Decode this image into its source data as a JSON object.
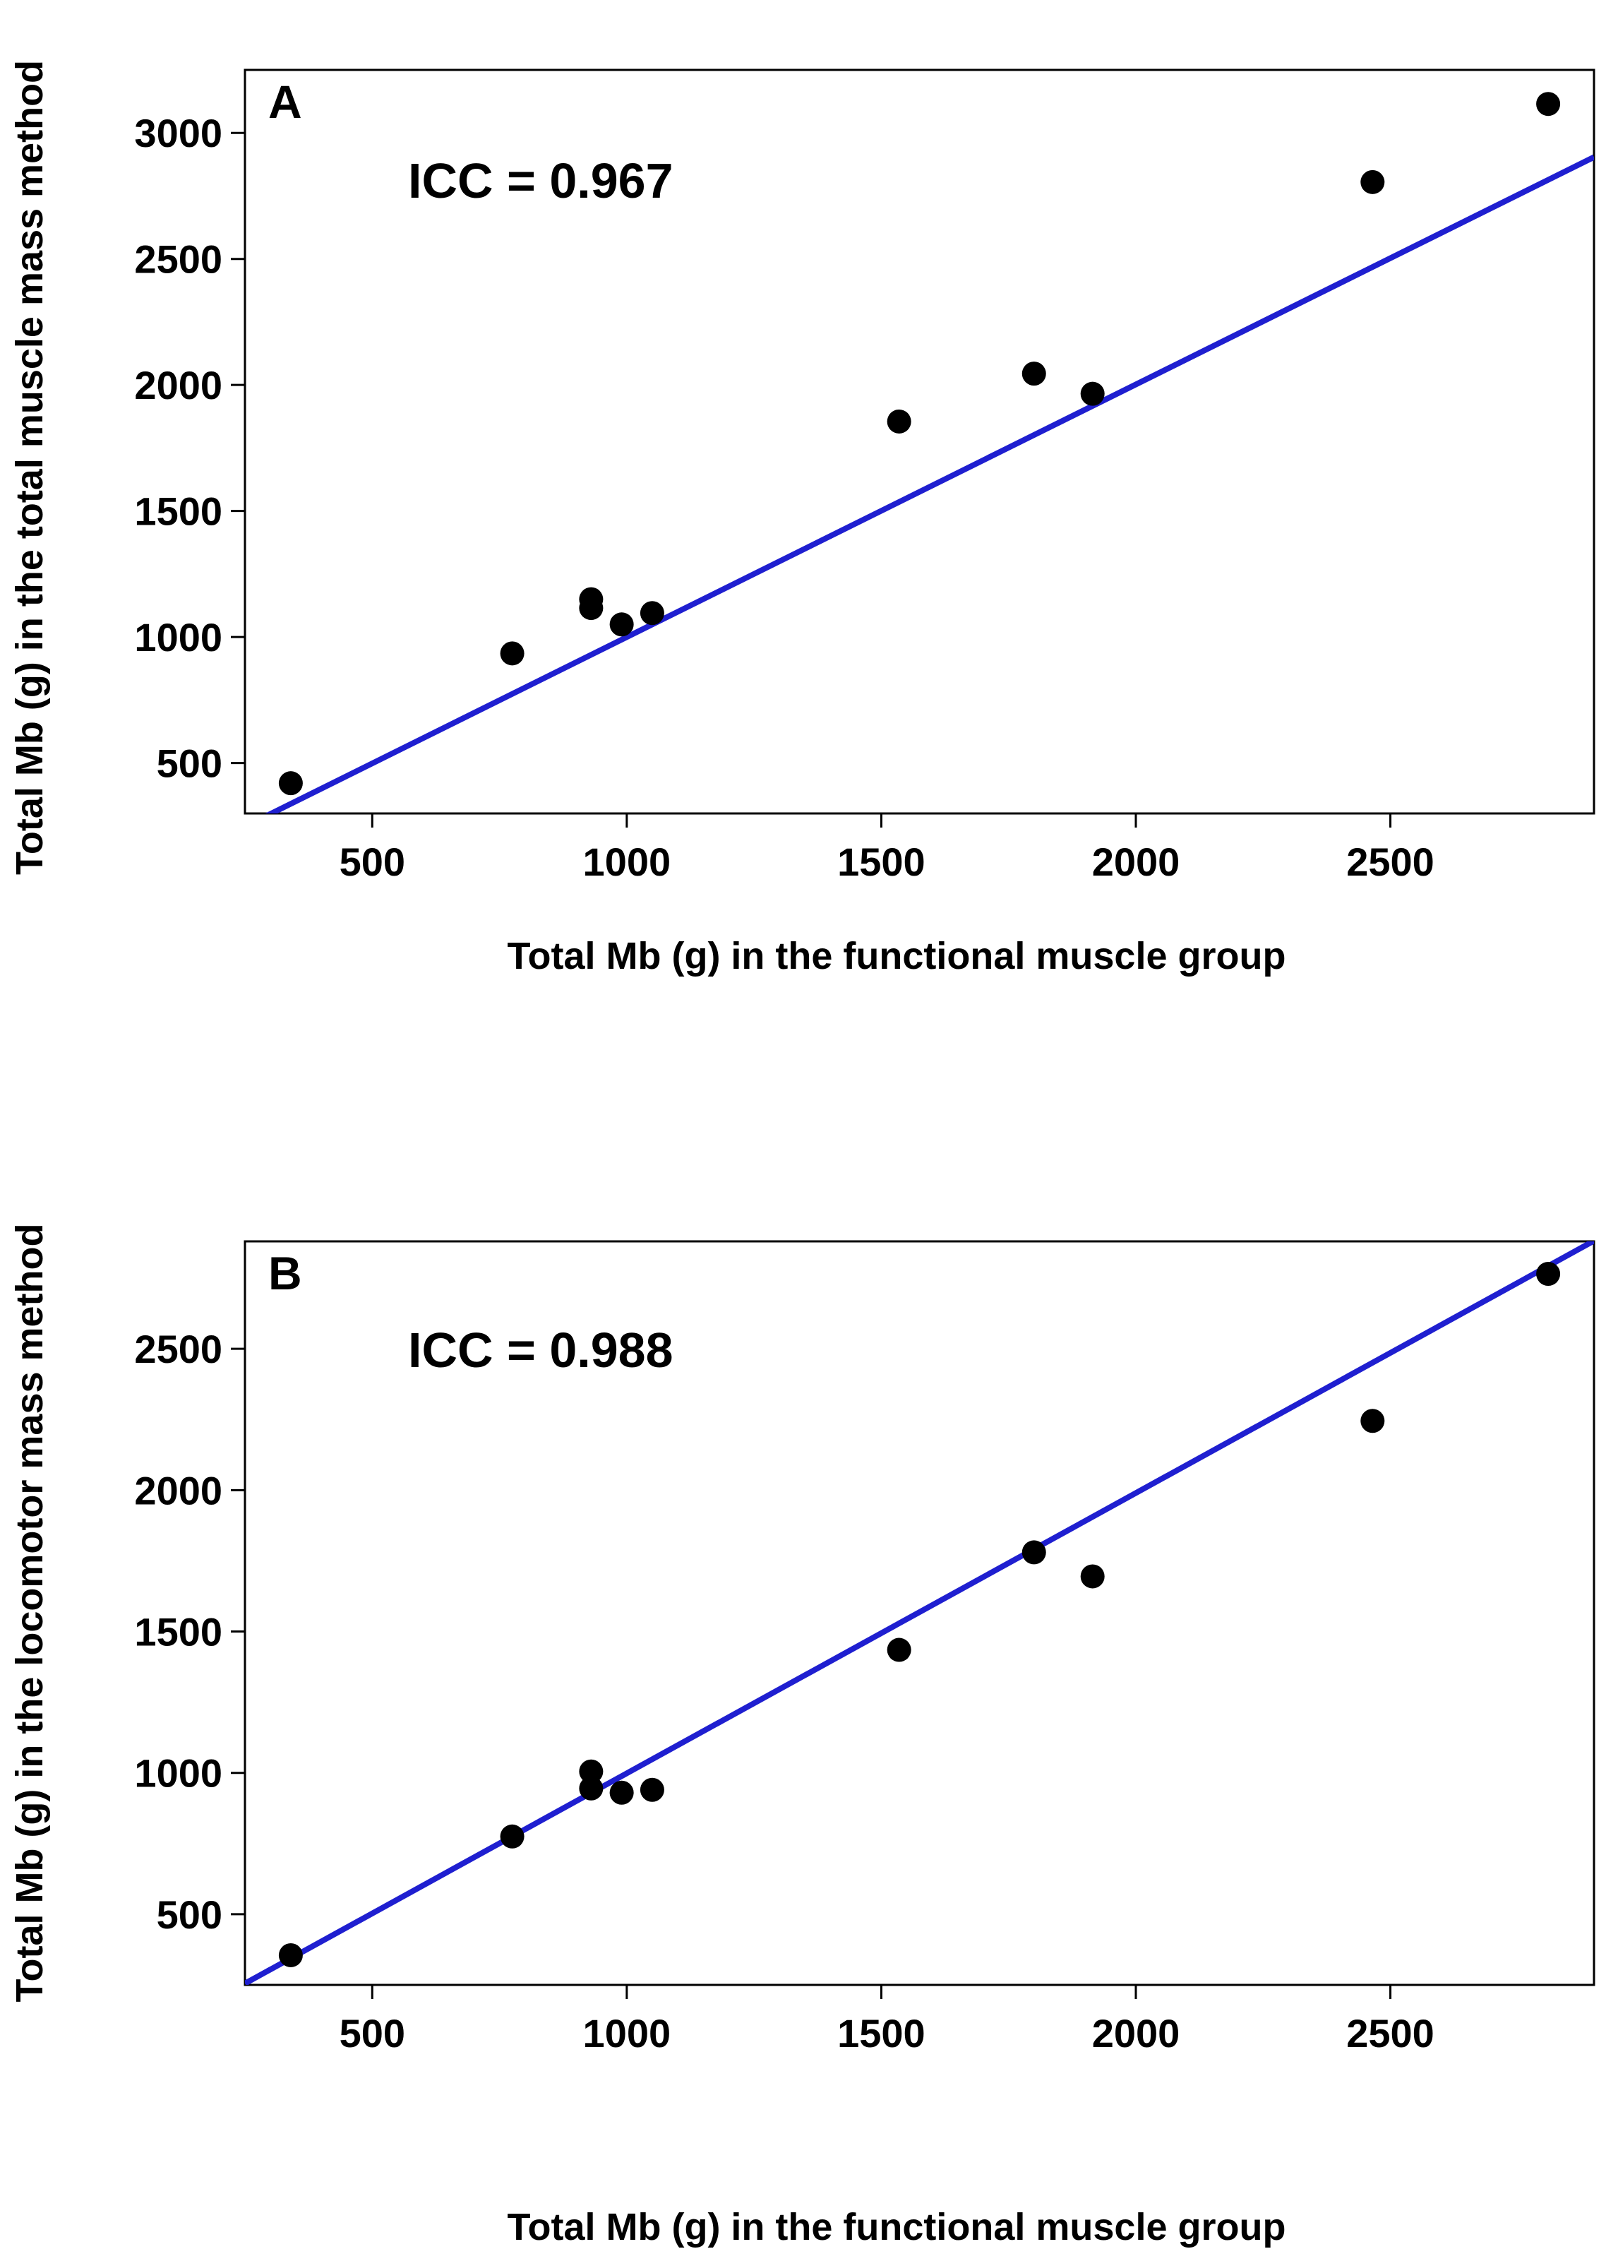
{
  "figure_title": "",
  "chart_data": [
    {
      "type": "scatter",
      "panel_label": "A",
      "annotation": "ICC = 0.967",
      "xlabel": "Total Mb (g) in the functional muscle group",
      "ylabel": "Total Mb (g) in the total muscle mass method",
      "xlim": [
        250,
        2900
      ],
      "ylim": [
        300,
        3250
      ],
      "x_ticks": [
        500,
        1000,
        1500,
        2000,
        2500
      ],
      "y_ticks": [
        500,
        1000,
        1500,
        2000,
        2500,
        3000
      ],
      "grid": false,
      "points": [
        {
          "x": 340,
          "y": 420
        },
        {
          "x": 775,
          "y": 935
        },
        {
          "x": 930,
          "y": 1150
        },
        {
          "x": 930,
          "y": 1115
        },
        {
          "x": 990,
          "y": 1050
        },
        {
          "x": 1050,
          "y": 1095
        },
        {
          "x": 1535,
          "y": 1855
        },
        {
          "x": 1800,
          "y": 2045
        },
        {
          "x": 1915,
          "y": 1965
        },
        {
          "x": 2465,
          "y": 2805
        },
        {
          "x": 2810,
          "y": 3115
        }
      ],
      "fit_line": {
        "x": [
          250,
          2900
        ],
        "y": [
          248,
          2904
        ],
        "color": "#1f1fd0"
      },
      "point_color": "#000000"
    },
    {
      "type": "scatter",
      "panel_label": "B",
      "annotation": "ICC = 0.988",
      "xlabel": "Total Mb (g) in the functional muscle group",
      "ylabel": "Total Mb (g) in the locomotor mass method",
      "xlim": [
        250,
        2900
      ],
      "ylim": [
        250,
        2880
      ],
      "x_ticks": [
        500,
        1000,
        1500,
        2000,
        2500
      ],
      "y_ticks": [
        500,
        1000,
        1500,
        2000,
        2500
      ],
      "grid": false,
      "points": [
        {
          "x": 340,
          "y": 355
        },
        {
          "x": 775,
          "y": 775
        },
        {
          "x": 930,
          "y": 1005
        },
        {
          "x": 930,
          "y": 945
        },
        {
          "x": 990,
          "y": 930
        },
        {
          "x": 1050,
          "y": 940
        },
        {
          "x": 1535,
          "y": 1435
        },
        {
          "x": 1800,
          "y": 1780
        },
        {
          "x": 1915,
          "y": 1695
        },
        {
          "x": 2465,
          "y": 2245
        },
        {
          "x": 2810,
          "y": 2765
        }
      ],
      "fit_line": {
        "x": [
          250,
          2900
        ],
        "y": [
          255,
          2882
        ],
        "color": "#1f1fd0"
      },
      "point_color": "#000000"
    }
  ]
}
